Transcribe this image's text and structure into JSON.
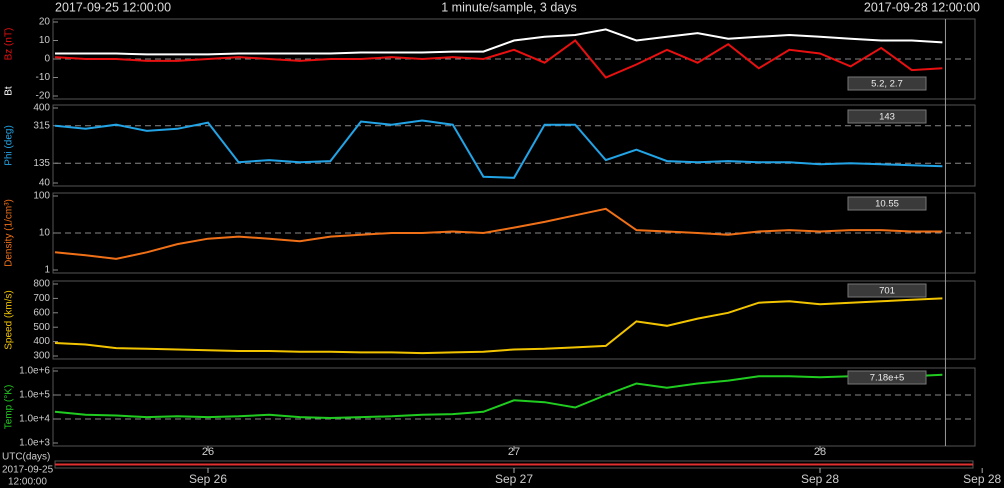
{
  "header": {
    "start": "2017-09-25 12:00:00",
    "subtitle": "1 minute/sample, 3 days",
    "end": "2017-09-28 12:00:00",
    "cursor_x": 28.41
  },
  "footer": {
    "xlabel": "UTC(days)",
    "date": "2017-09-25",
    "time": "12:00:00",
    "xticks": [
      {
        "value": 26,
        "label": "Sep 26"
      },
      {
        "value": 27,
        "label": "Sep 27"
      },
      {
        "value": 28,
        "label": "Sep 28"
      },
      {
        "value": 28.53,
        "label": "Sep 28"
      }
    ]
  },
  "chart_data": [
    {
      "type": "line",
      "xlim": [
        25.5,
        28.5
      ],
      "ylim": [
        -20,
        20
      ],
      "yticks": [
        -20,
        -10,
        0,
        10,
        20
      ],
      "reference_lines": [
        0
      ],
      "readout": "5.2, 2.7",
      "x": [
        25.5,
        25.6,
        25.7,
        25.8,
        25.9,
        26.0,
        26.1,
        26.2,
        26.3,
        26.4,
        26.5,
        26.6,
        26.7,
        26.8,
        26.9,
        27.0,
        27.1,
        27.2,
        27.3,
        27.4,
        27.5,
        27.6,
        27.7,
        27.8,
        27.9,
        28.0,
        28.1,
        28.2,
        28.3,
        28.4
      ],
      "series": [
        {
          "name": "Bt",
          "color": "#ffffff",
          "values": [
            3,
            3,
            3,
            2.5,
            2.5,
            2.5,
            3,
            3,
            3,
            3,
            3.5,
            3.5,
            3.5,
            4,
            4,
            10,
            12,
            13,
            16,
            10,
            12,
            14,
            11,
            12,
            13,
            12,
            11,
            10,
            10,
            9
          ]
        },
        {
          "name": "Bz (nT)",
          "color": "#e81010",
          "values": [
            1,
            0,
            0,
            -1,
            -1,
            0,
            1,
            0,
            -1,
            0,
            0,
            1,
            0,
            1,
            0,
            5,
            -2,
            10,
            -10,
            -3,
            5,
            -2,
            8,
            -5,
            5,
            3,
            -4,
            6,
            -6,
            -5
          ]
        }
      ]
    },
    {
      "type": "line",
      "xlim": [
        25.5,
        28.5
      ],
      "ylim": [
        40,
        400
      ],
      "yticks": [
        40,
        135,
        315,
        400
      ],
      "reference_lines": [
        315,
        135
      ],
      "readout": "143",
      "x": [
        25.5,
        25.6,
        25.7,
        25.8,
        25.9,
        26.0,
        26.1,
        26.2,
        26.3,
        26.4,
        26.5,
        26.6,
        26.7,
        26.8,
        26.9,
        27.0,
        27.1,
        27.2,
        27.3,
        27.4,
        27.5,
        27.6,
        27.7,
        27.8,
        27.9,
        28.0,
        28.1,
        28.2,
        28.3,
        28.4
      ],
      "series": [
        {
          "name": "Phi (deg)",
          "color": "#22a4e6",
          "values": [
            315,
            300,
            320,
            290,
            300,
            330,
            140,
            150,
            140,
            145,
            335,
            320,
            340,
            320,
            70,
            65,
            320,
            320,
            150,
            200,
            145,
            140,
            145,
            140,
            140,
            130,
            135,
            130,
            125,
            120
          ]
        }
      ]
    },
    {
      "type": "line",
      "log": true,
      "xlim": [
        25.5,
        28.5
      ],
      "ylim": [
        1,
        100
      ],
      "yticks": [
        1,
        10,
        100
      ],
      "reference_lines": [
        10
      ],
      "readout": "10.55",
      "x": [
        25.5,
        25.6,
        25.7,
        25.8,
        25.9,
        26.0,
        26.1,
        26.2,
        26.3,
        26.4,
        26.5,
        26.6,
        26.7,
        26.8,
        26.9,
        27.0,
        27.1,
        27.2,
        27.3,
        27.4,
        27.5,
        27.6,
        27.7,
        27.8,
        27.9,
        28.0,
        28.1,
        28.2,
        28.3,
        28.4
      ],
      "series": [
        {
          "name": "Density (1/cm³)",
          "color": "#f07018",
          "values": [
            3,
            2.5,
            2,
            3,
            5,
            7,
            8,
            7,
            6,
            8,
            9,
            10,
            10,
            11,
            10,
            14,
            20,
            30,
            45,
            12,
            11,
            10,
            9,
            11,
            12,
            11,
            12,
            12,
            11,
            11
          ]
        }
      ]
    },
    {
      "type": "line",
      "xlim": [
        25.5,
        28.5
      ],
      "ylim": [
        300,
        800
      ],
      "yticks": [
        300,
        400,
        500,
        600,
        700,
        800
      ],
      "reference_lines": [],
      "readout": "701",
      "x": [
        25.5,
        25.6,
        25.7,
        25.8,
        25.9,
        26.0,
        26.1,
        26.2,
        26.3,
        26.4,
        26.5,
        26.6,
        26.7,
        26.8,
        26.9,
        27.0,
        27.1,
        27.2,
        27.3,
        27.4,
        27.5,
        27.6,
        27.7,
        27.8,
        27.9,
        28.0,
        28.1,
        28.2,
        28.3,
        28.4
      ],
      "series": [
        {
          "name": "Speed (km/s)",
          "color": "#f2c400",
          "values": [
            390,
            380,
            355,
            350,
            345,
            340,
            335,
            335,
            330,
            330,
            325,
            325,
            320,
            325,
            330,
            345,
            350,
            360,
            370,
            540,
            510,
            560,
            600,
            670,
            680,
            660,
            670,
            680,
            690,
            700
          ]
        }
      ]
    },
    {
      "type": "line",
      "log": true,
      "xlim": [
        25.5,
        28.5
      ],
      "ylim": [
        1000,
        1000000
      ],
      "yticks": [
        {
          "value": 1000,
          "label": "1.0e+3"
        },
        {
          "value": 10000,
          "label": "1.0e+4"
        },
        {
          "value": 100000,
          "label": "1.0e+5"
        },
        {
          "value": 1000000,
          "label": "1.0e+6"
        }
      ],
      "reference_lines": [
        100000,
        10000
      ],
      "readout": "7.18e+5",
      "xticks": [
        26,
        27,
        28
      ],
      "x": [
        25.5,
        25.6,
        25.7,
        25.8,
        25.9,
        26.0,
        26.1,
        26.2,
        26.3,
        26.4,
        26.5,
        26.6,
        26.7,
        26.8,
        26.9,
        27.0,
        27.1,
        27.2,
        27.3,
        27.4,
        27.5,
        27.6,
        27.7,
        27.8,
        27.9,
        28.0,
        28.1,
        28.2,
        28.3,
        28.4
      ],
      "series": [
        {
          "name": "Temp (°K)",
          "color": "#20cc20",
          "values": [
            20000,
            15000,
            14000,
            12000,
            13000,
            12000,
            13000,
            15000,
            12000,
            11000,
            12000,
            13000,
            15000,
            16000,
            20000,
            60000,
            50000,
            30000,
            100000,
            300000,
            200000,
            300000,
            400000,
            600000,
            600000,
            550000,
            600000,
            650000,
            600000,
            700000
          ]
        }
      ]
    }
  ]
}
